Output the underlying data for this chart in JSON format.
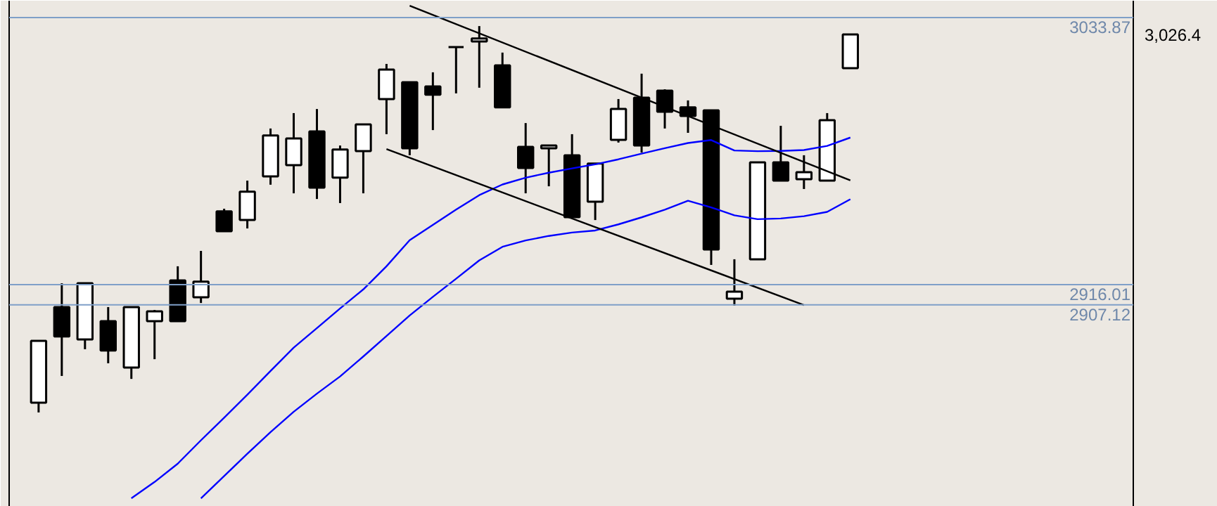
{
  "chart_data": {
    "type": "candlestick",
    "categories": [
      null,
      null,
      null,
      null,
      null,
      null,
      null,
      null,
      null,
      null,
      null,
      null,
      null,
      null,
      null,
      null,
      null,
      null,
      null,
      null,
      null,
      null,
      null,
      null,
      null,
      null,
      null,
      null,
      null,
      null,
      null,
      null,
      null,
      null,
      null,
      null
    ],
    "ohlc": [
      [
        2863.9,
        2891.2,
        2859.6,
        2891.2
      ],
      [
        2906.1,
        2916.6,
        2875.7,
        2893.1
      ],
      [
        2891.8,
        2916.6,
        2887.5,
        2916.6
      ],
      [
        2899.9,
        2906.1,
        2881.3,
        2886.9
      ],
      [
        2879.4,
        2906.1,
        2874.4,
        2906.1
      ],
      [
        2899.9,
        2904.8,
        2883.1,
        2904.2
      ],
      [
        2917.9,
        2924.1,
        2899.9,
        2899.9
      ],
      [
        2910.4,
        2930.9,
        2907.9,
        2917.3
      ],
      [
        2948.3,
        2949.5,
        2939.6,
        2939.6
      ],
      [
        2944.5,
        2961.9,
        2940.8,
        2957.0
      ],
      [
        2963.8,
        2984.9,
        2960.1,
        2981.8
      ],
      [
        2968.7,
        2991.7,
        2956.3,
        2980.5
      ],
      [
        2983.6,
        2993.5,
        2953.8,
        2958.8
      ],
      [
        2963.2,
        2977.4,
        2952.0,
        2975.6
      ],
      [
        2974.9,
        2986.7,
        2956.3,
        2986.7
      ],
      [
        2997.9,
        3013.4,
        2982.4,
        3010.9
      ],
      [
        3005.3,
        3005.3,
        2973.1,
        2976.2
      ],
      [
        3003.5,
        3009.7,
        2984.2,
        2999.8
      ],
      [
        3020.8,
        3020.8,
        3000.4,
        3020.8
      ],
      [
        3023.3,
        3030.1,
        3002.9,
        3024.6
      ],
      [
        3012.8,
        3018.4,
        2994.2,
        2994.2
      ],
      [
        2976.8,
        2987.3,
        2956.3,
        2967.5
      ],
      [
        2976.2,
        2977.4,
        2959.4,
        2977.4
      ],
      [
        2973.1,
        2982.4,
        2945.8,
        2945.8
      ],
      [
        2952.6,
        2969.4,
        2944.5,
        2969.4
      ],
      [
        2979.9,
        2997.9,
        2978.7,
        2993.5
      ],
      [
        2998.5,
        3009.1,
        2974.3,
        2977.4
      ],
      [
        3001.6,
        3002.2,
        2984.9,
        2992.3
      ],
      [
        2994.2,
        2997.3,
        2983.0,
        2990.4
      ],
      [
        2992.9,
        2992.9,
        2924.7,
        2931.5
      ],
      [
        2909.8,
        2927.2,
        2906.7,
        2912.9
      ],
      [
        2927.2,
        2970.0,
        2927.2,
        2970.0
      ],
      [
        2970.0,
        2986.1,
        2961.9,
        2961.9
      ],
      [
        2962.5,
        2973.1,
        2958.2,
        2965.6
      ],
      [
        2961.9,
        2991.7,
        2961.9,
        2988.6
      ],
      [
        3011.5,
        3026.4,
        3011.5,
        3026.4
      ]
    ],
    "series": [
      {
        "type": "line",
        "color": "#0000ff",
        "values": [
          null,
          null,
          null,
          null,
          2821.7,
          2828.9,
          2837.0,
          2847.3,
          2857.3,
          2867.4,
          2877.9,
          2888.2,
          2896.8,
          2905.5,
          2913.9,
          2924.1,
          2935.6,
          2942.4,
          2949.1,
          2955.5,
          2960.2,
          2963.2,
          2965.4,
          2967.3,
          2969.1,
          2971.3,
          2973.8,
          2976.2,
          2978.5,
          2979.8,
          2975.2,
          2974.9,
          2975.0,
          2975.4,
          2977.2,
          2980.9
        ]
      },
      {
        "type": "line",
        "color": "#0000ff",
        "values": [
          null,
          null,
          null,
          null,
          null,
          null,
          null,
          2821.7,
          2831.5,
          2841.4,
          2850.9,
          2859.9,
          2867.9,
          2875.5,
          2884.3,
          2893.3,
          2902.4,
          2910.6,
          2918.6,
          2926.7,
          2932.7,
          2935.5,
          2937.5,
          2939.0,
          2939.9,
          2942.6,
          2945.7,
          2949.1,
          2953.0,
          2950.1,
          2946.6,
          2944.9,
          2945.2,
          2946.2,
          2948.1,
          2953.7
        ]
      },
      {
        "type": "line",
        "color": "#000000",
        "values": [
          null,
          null,
          null,
          null,
          null,
          null,
          null,
          null,
          null,
          null,
          null,
          null,
          null,
          null,
          null,
          null,
          3039.1,
          null,
          null,
          null,
          null,
          null,
          null,
          null,
          null,
          null,
          null,
          null,
          null,
          null,
          null,
          null,
          null,
          null,
          null,
          2962.0
        ]
      },
      {
        "type": "line",
        "color": "#000000",
        "values": [
          null,
          null,
          null,
          null,
          null,
          null,
          null,
          null,
          null,
          null,
          null,
          null,
          null,
          null,
          null,
          2975.8,
          null,
          null,
          null,
          null,
          null,
          null,
          null,
          null,
          null,
          null,
          null,
          null,
          null,
          null,
          null,
          null,
          null,
          2907.0,
          null,
          null
        ]
      }
    ],
    "ref_lines": [
      {
        "axis": "y",
        "value": 3033.87,
        "color": "#7f9fc8"
      },
      {
        "axis": "y",
        "value": 2916.01,
        "color": "#7f9fc8"
      },
      {
        "axis": "y",
        "value": 2907.12,
        "color": "#7f9fc8"
      }
    ],
    "annotations": [
      "3,026.4"
    ],
    "ylim": [
      2818.0,
      3041.3
    ],
    "yticks": [
      3033.87,
      2916.01,
      2907.12
    ],
    "tick_labels": "y",
    "grid": false,
    "marker": "none",
    "line_style": "solid"
  }
}
